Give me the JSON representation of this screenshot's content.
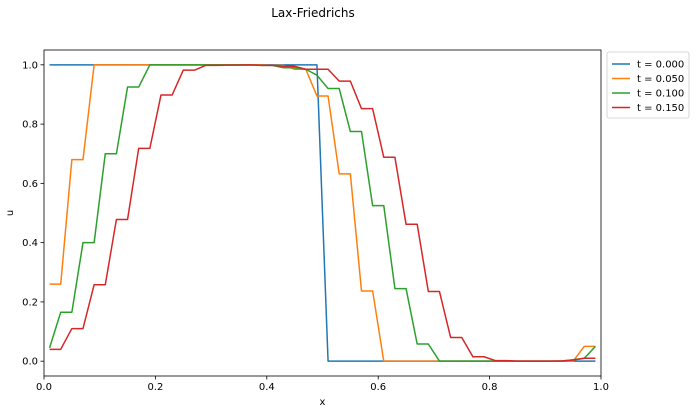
{
  "chart_data": {
    "type": "line",
    "title": "Lax-Friedrichs",
    "xlabel": "x",
    "ylabel": "u",
    "xlim": [
      0.0,
      1.0
    ],
    "ylim": [
      -0.05,
      1.05
    ],
    "xticks": [
      "0.0",
      "0.2",
      "0.4",
      "0.6",
      "0.8",
      "1.0"
    ],
    "yticks": [
      "0.0",
      "0.2",
      "0.4",
      "0.6",
      "0.8",
      "1.0"
    ],
    "grid": false,
    "legend_position": "outside-top-right",
    "series": [
      {
        "name": "t = 0.000",
        "color": "#1f77b4",
        "x": [
          0.01,
          0.03,
          0.05,
          0.07,
          0.09,
          0.11,
          0.13,
          0.15,
          0.17,
          0.19,
          0.21,
          0.23,
          0.25,
          0.27,
          0.29,
          0.31,
          0.33,
          0.35,
          0.37,
          0.39,
          0.41,
          0.43,
          0.45,
          0.47,
          0.49,
          0.51,
          0.53,
          0.55,
          0.57,
          0.59,
          0.61,
          0.63,
          0.65,
          0.67,
          0.69,
          0.71,
          0.73,
          0.75,
          0.77,
          0.79,
          0.81,
          0.83,
          0.85,
          0.87,
          0.89,
          0.91,
          0.93,
          0.95,
          0.97,
          0.99
        ],
        "y": [
          1,
          1,
          1,
          1,
          1,
          1,
          1,
          1,
          1,
          1,
          1,
          1,
          1,
          1,
          1,
          1,
          1,
          1,
          1,
          1,
          1,
          1,
          1,
          1,
          1,
          0,
          0,
          0,
          0,
          0,
          0,
          0,
          0,
          0,
          0,
          0,
          0,
          0,
          0,
          0,
          0,
          0,
          0,
          0,
          0,
          0,
          0,
          0,
          0,
          0
        ]
      },
      {
        "name": "t = 0.050",
        "color": "#ff7f0e",
        "x": [
          0.01,
          0.03,
          0.05,
          0.07,
          0.09,
          0.11,
          0.13,
          0.15,
          0.17,
          0.19,
          0.21,
          0.23,
          0.25,
          0.27,
          0.29,
          0.31,
          0.33,
          0.35,
          0.37,
          0.39,
          0.41,
          0.43,
          0.45,
          0.47,
          0.49,
          0.51,
          0.53,
          0.55,
          0.57,
          0.59,
          0.61,
          0.63,
          0.65,
          0.67,
          0.69,
          0.71,
          0.73,
          0.75,
          0.77,
          0.79,
          0.81,
          0.83,
          0.85,
          0.87,
          0.89,
          0.91,
          0.93,
          0.95,
          0.97,
          0.99
        ],
        "y": [
          0.26,
          0.26,
          0.68,
          0.68,
          1.0,
          1.0,
          1.0,
          1.0,
          1.0,
          1.0,
          1.0,
          1.0,
          1.0,
          1.0,
          1.0,
          1.0,
          1.0,
          1.0,
          1.0,
          1.0,
          0.998,
          0.998,
          0.985,
          0.985,
          0.895,
          0.895,
          0.632,
          0.632,
          0.237,
          0.237,
          0.0,
          0.0,
          0.0,
          0.0,
          0.0,
          0.0,
          0.0,
          0.0,
          0.0,
          0.0,
          0.0,
          0.0,
          0.0,
          0.0,
          0.0,
          0.0,
          0.0,
          0.0,
          0.05,
          0.05
        ]
      },
      {
        "name": "t = 0.100",
        "color": "#2ca02c",
        "x": [
          0.01,
          0.03,
          0.05,
          0.07,
          0.09,
          0.11,
          0.13,
          0.15,
          0.17,
          0.19,
          0.21,
          0.23,
          0.25,
          0.27,
          0.29,
          0.31,
          0.33,
          0.35,
          0.37,
          0.39,
          0.41,
          0.43,
          0.45,
          0.47,
          0.49,
          0.51,
          0.53,
          0.55,
          0.57,
          0.59,
          0.61,
          0.63,
          0.65,
          0.67,
          0.69,
          0.71,
          0.73,
          0.75,
          0.77,
          0.79,
          0.81,
          0.83,
          0.85,
          0.87,
          0.89,
          0.91,
          0.93,
          0.95,
          0.97,
          0.99
        ],
        "y": [
          0.045,
          0.165,
          0.165,
          0.4,
          0.4,
          0.7,
          0.7,
          0.925,
          0.925,
          1.0,
          1.0,
          1.0,
          1.0,
          1.0,
          1.0,
          1.0,
          1.0,
          1.0,
          1.0,
          0.998,
          0.998,
          0.99,
          0.99,
          0.985,
          0.965,
          0.92,
          0.92,
          0.775,
          0.775,
          0.525,
          0.525,
          0.245,
          0.245,
          0.058,
          0.058,
          0.0,
          0.0,
          0.0,
          0.0,
          0.0,
          0.0,
          0.0,
          0.0,
          0.0,
          0.0,
          0.0,
          0.0,
          0.005,
          0.01,
          0.05
        ]
      },
      {
        "name": "t = 0.150",
        "color": "#d62728",
        "x": [
          0.01,
          0.03,
          0.05,
          0.07,
          0.09,
          0.11,
          0.13,
          0.15,
          0.17,
          0.19,
          0.21,
          0.23,
          0.25,
          0.27,
          0.29,
          0.31,
          0.33,
          0.35,
          0.37,
          0.39,
          0.41,
          0.43,
          0.45,
          0.47,
          0.49,
          0.51,
          0.53,
          0.55,
          0.57,
          0.59,
          0.61,
          0.63,
          0.65,
          0.67,
          0.69,
          0.71,
          0.73,
          0.75,
          0.77,
          0.79,
          0.81,
          0.83,
          0.85,
          0.87,
          0.89,
          0.91,
          0.93,
          0.95,
          0.97,
          0.99
        ],
        "y": [
          0.04,
          0.04,
          0.11,
          0.11,
          0.258,
          0.258,
          0.478,
          0.478,
          0.718,
          0.718,
          0.898,
          0.898,
          0.982,
          0.982,
          0.998,
          0.998,
          0.999,
          0.999,
          1.0,
          0.998,
          0.998,
          0.995,
          0.995,
          0.985,
          0.985,
          0.985,
          0.945,
          0.945,
          0.852,
          0.852,
          0.688,
          0.688,
          0.462,
          0.462,
          0.235,
          0.235,
          0.08,
          0.08,
          0.015,
          0.015,
          0.002,
          0.002,
          0.0,
          0.0,
          0.0,
          0.0,
          0.001,
          0.004,
          0.01,
          0.01
        ]
      }
    ]
  }
}
